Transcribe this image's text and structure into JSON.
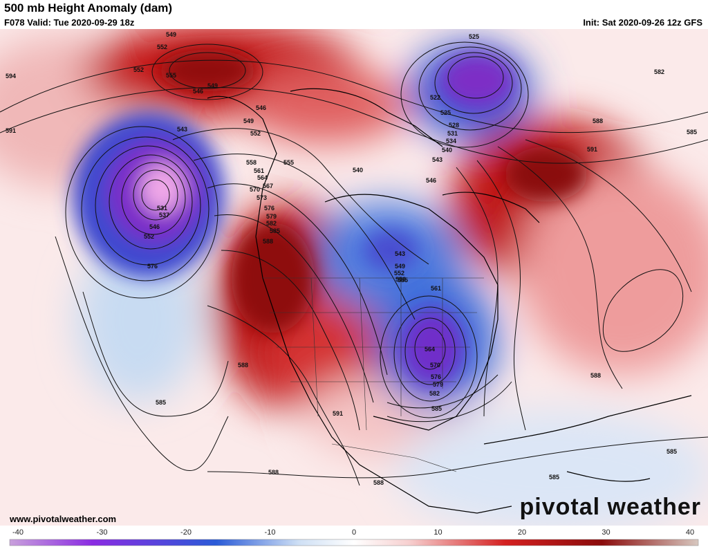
{
  "header": {
    "title": "500 mb Height Anomaly (dam)",
    "valid": "F078 Valid: Tue 2020-09-29 18z",
    "init": "Init: Sat 2020-09-26 12z GFS"
  },
  "footer": {
    "website": "www.pivotalweather.com",
    "brand": "pivotal weather"
  },
  "colorbar": {
    "ticks": [
      "-40",
      "-30",
      "-20",
      "-10",
      "0",
      "10",
      "20",
      "30",
      "40"
    ],
    "min": -40,
    "max": 40,
    "colors": {
      "neg_extreme": "#c9a0dc",
      "neg_purple": "#8a2be2",
      "neg_blue": "#2a5bd7",
      "neg_light": "#cfe0f5",
      "zero": "#ffffff",
      "pos_light": "#f7d0d0",
      "pos_red": "#d42020",
      "pos_dark": "#8a0b0b",
      "pos_extreme": "#d8c8c0"
    }
  },
  "contour_labels": [
    "594",
    "591",
    "549",
    "552",
    "552",
    "555",
    "546",
    "549",
    "546",
    "549",
    "543",
    "552",
    "555",
    "558",
    "561",
    "564",
    "567",
    "570",
    "573",
    "576",
    "579",
    "582",
    "585",
    "588",
    "531",
    "537",
    "546",
    "552",
    "576",
    "585",
    "588",
    "591",
    "588",
    "588",
    "525",
    "522",
    "525",
    "528",
    "531",
    "534",
    "540",
    "543",
    "546",
    "540",
    "543",
    "549",
    "552",
    "555",
    "558",
    "561",
    "564",
    "570",
    "576",
    "579",
    "582",
    "585",
    "582",
    "585",
    "588",
    "591",
    "588",
    "585",
    "585"
  ]
}
